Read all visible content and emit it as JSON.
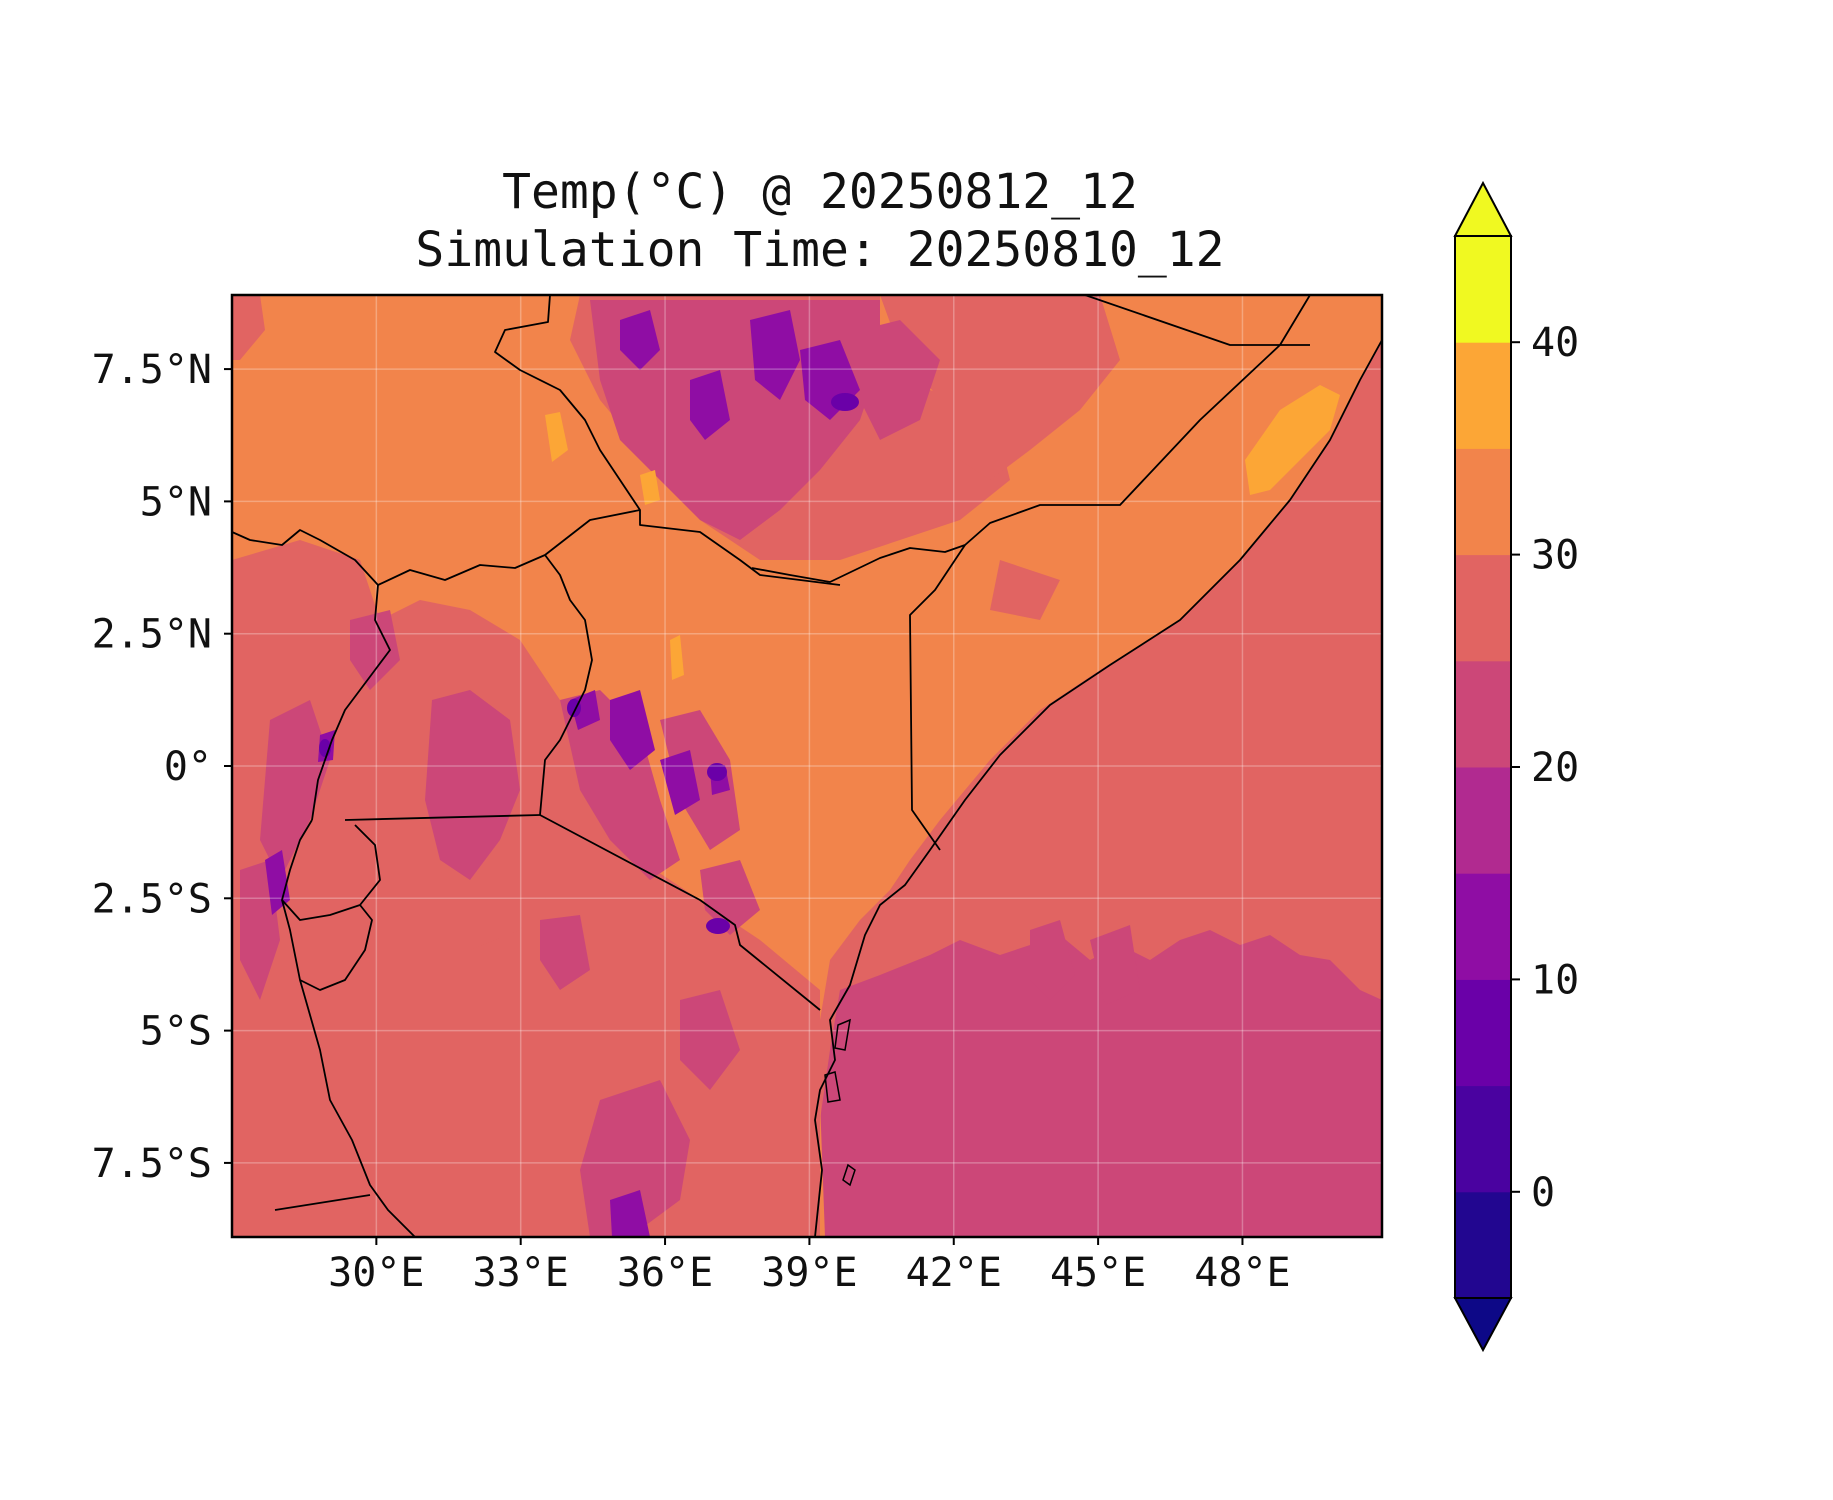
{
  "title": "Temp(°C) @ 20250812_12",
  "subtitle": "Simulation Time: 20250810_12",
  "map": {
    "lon_range": [
      27.0,
      50.9
    ],
    "lat_range": [
      -8.9,
      8.9
    ],
    "x_ticks": [
      {
        "value": 30,
        "label": "30°E"
      },
      {
        "value": 33,
        "label": "33°E"
      },
      {
        "value": 36,
        "label": "36°E"
      },
      {
        "value": 39,
        "label": "39°E"
      },
      {
        "value": 42,
        "label": "42°E"
      },
      {
        "value": 45,
        "label": "45°E"
      },
      {
        "value": 48,
        "label": "48°E"
      }
    ],
    "y_ticks": [
      {
        "value": 7.5,
        "label": "7.5°N"
      },
      {
        "value": 5,
        "label": "5°N"
      },
      {
        "value": 2.5,
        "label": "2.5°N"
      },
      {
        "value": 0,
        "label": "0°"
      },
      {
        "value": -2.5,
        "label": "2.5°S"
      },
      {
        "value": -5,
        "label": "5°S"
      },
      {
        "value": -7.5,
        "label": "7.5°S"
      }
    ],
    "gridlines": true
  },
  "colorbar": {
    "variable": "Temperature (°C)",
    "min": -5,
    "max": 45,
    "interval": 5,
    "extend": "both",
    "ticks": [
      {
        "value": 0,
        "label": "0"
      },
      {
        "value": 10,
        "label": "10"
      },
      {
        "value": 20,
        "label": "20"
      },
      {
        "value": 30,
        "label": "30"
      },
      {
        "value": 40,
        "label": "40"
      }
    ],
    "band_colors": [
      "#220690",
      "#4a02a0",
      "#6a00a8",
      "#8f0da4",
      "#b12a90",
      "#cc4778",
      "#e16462",
      "#f2844b",
      "#fca636",
      "#f0f921"
    ],
    "extend_low_color": "#0d0887",
    "extend_high_color": "#f0f921"
  },
  "colors": {
    "ocean_east": "#e16462",
    "land_lowland": "#f2844b",
    "highland": "#cc4778",
    "peak": "#8f0da4",
    "hot_spot": "#fca636"
  }
}
